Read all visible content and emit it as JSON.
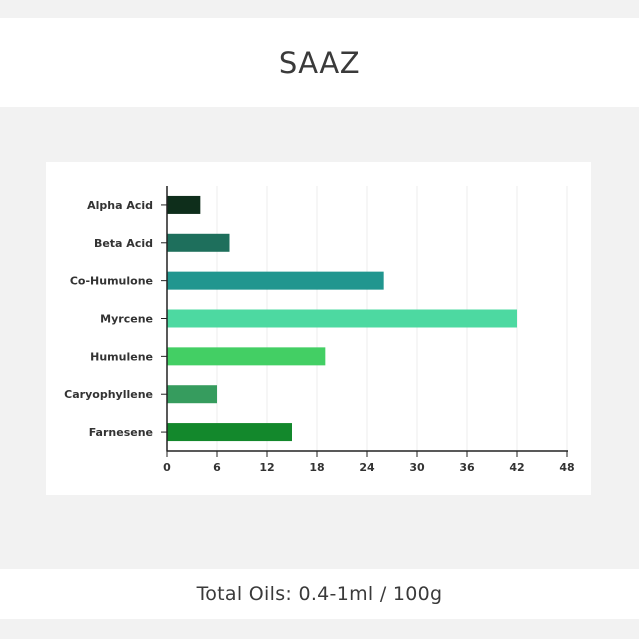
{
  "header": {
    "title": "SAAZ"
  },
  "footer": {
    "total_oils": "Total Oils: 0.4-1ml / 100g"
  },
  "chart_data": {
    "type": "bar",
    "orientation": "horizontal",
    "title": "",
    "xlabel": "",
    "ylabel": "",
    "categories": [
      "Alpha Acid",
      "Beta Acid",
      "Co-Humulone",
      "Myrcene",
      "Humulene",
      "Caryophyllene",
      "Farnesene"
    ],
    "values": [
      4,
      7.5,
      26,
      42,
      19,
      6,
      15
    ],
    "colors": [
      "#0e2e1b",
      "#1e6f5c",
      "#21968f",
      "#4dd9a1",
      "#43cf64",
      "#369c5e",
      "#13882c"
    ],
    "xlim": [
      0,
      48
    ],
    "xticks": [
      0,
      6,
      12,
      18,
      24,
      30,
      36,
      42,
      48
    ],
    "grid": true
  }
}
